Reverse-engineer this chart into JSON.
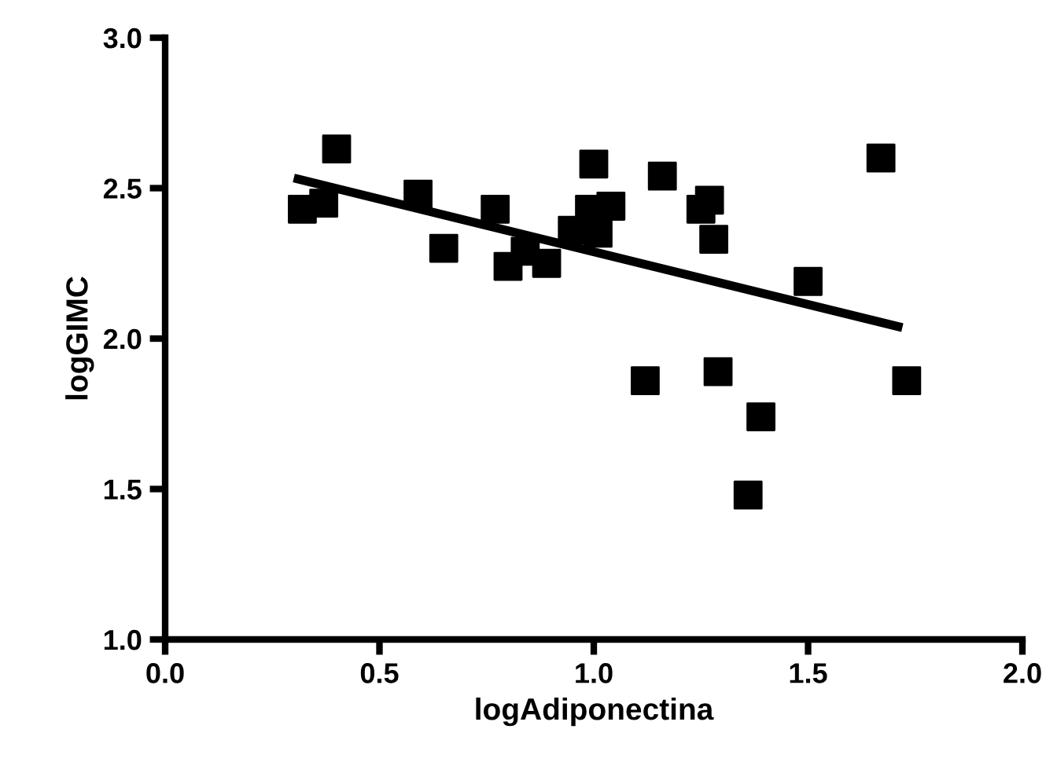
{
  "chart_data": {
    "type": "scatter",
    "xlabel": "logAdiponectina",
    "ylabel": "logGIMC",
    "xlim": [
      0,
      2
    ],
    "xticks": [
      {
        "value": 0,
        "label": "0.0"
      },
      {
        "value": 0.5,
        "label": "0.5"
      },
      {
        "value": 1,
        "label": "1.0"
      },
      {
        "value": 1.5,
        "label": "1.5"
      },
      {
        "value": 2,
        "label": "2.0"
      }
    ],
    "ylim": [
      1,
      3
    ],
    "yticks": [
      {
        "value": 1,
        "label": "1.0"
      },
      {
        "value": 1.5,
        "label": "1.5"
      },
      {
        "value": 2,
        "label": "2.0"
      },
      {
        "value": 2.5,
        "label": "2.5"
      },
      {
        "value": 3,
        "label": "3.0"
      }
    ],
    "grid": false,
    "series": [
      {
        "color": "#000000",
        "marker": "square",
        "x": [
          0.32,
          0.37,
          0.4,
          0.59,
          0.65,
          0.77,
          0.8,
          0.84,
          0.89,
          0.95,
          0.99,
          1.0,
          1.01,
          1.04,
          1.16,
          1.12,
          1.25,
          1.27,
          1.28,
          1.29,
          1.39,
          1.36,
          1.5,
          1.67,
          1.73
        ],
        "values": [
          2.43,
          2.45,
          2.63,
          2.48,
          2.3,
          2.43,
          2.24,
          2.29,
          2.25,
          2.36,
          2.43,
          2.58,
          2.35,
          2.44,
          2.54,
          1.86,
          2.43,
          2.46,
          2.33,
          1.89,
          1.74,
          1.48,
          2.19,
          2.6,
          1.86
        ]
      },
      {
        "type": "line",
        "color": "#000000",
        "marker": "none",
        "line_style": "solid",
        "x": [
          0.31,
          1.71
        ],
        "values": [
          2.53,
          2.04
        ]
      }
    ]
  }
}
